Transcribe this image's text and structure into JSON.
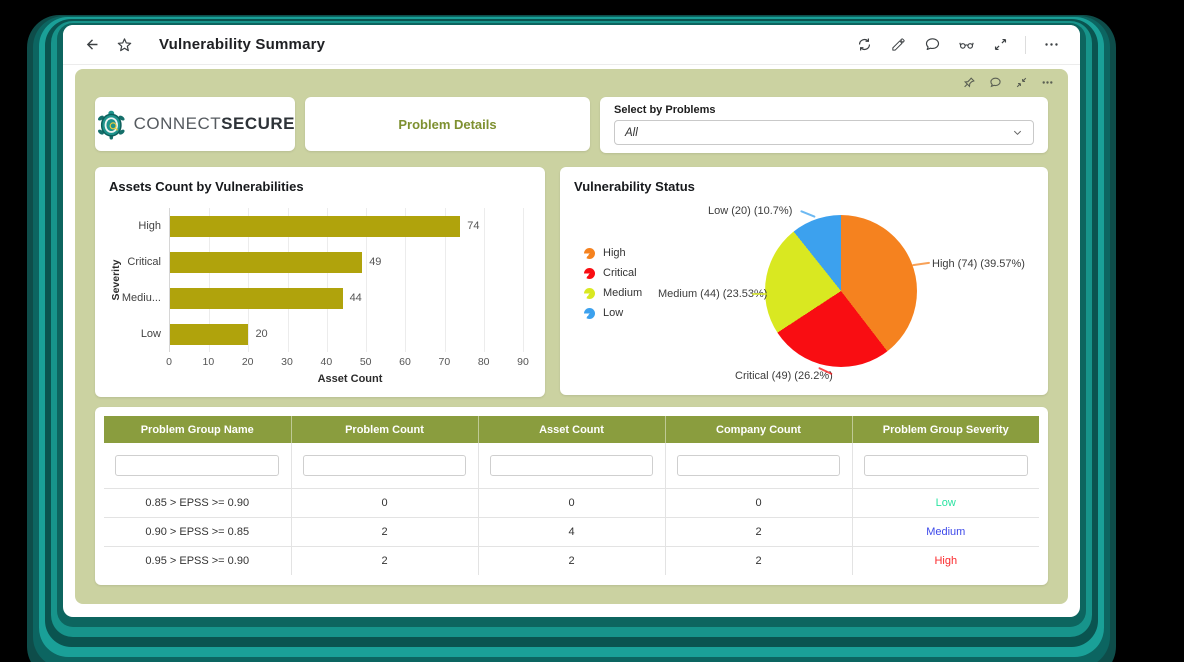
{
  "accent_colors": {
    "frame_teal": "#17948b",
    "panel_olive": "#cbd2a1",
    "table_header": "#8a9d3e",
    "brand_green": "#7e9030"
  },
  "toolbar": {
    "title": "Vulnerability Summary",
    "icons": [
      "back-arrow",
      "favorite-star",
      "refresh",
      "edit-pencil",
      "comment-bubble",
      "preview-glasses",
      "fullscreen-expand",
      "more-ellipsis"
    ]
  },
  "panel_corner_icons": [
    "pin",
    "comment-bubble",
    "collapse",
    "more-ellipsis"
  ],
  "header_cards": {
    "logo": {
      "brand_first": "CONNECT",
      "brand_second": "SECURE",
      "icon": "turtle-logo"
    },
    "details_label": "Problem Details",
    "select": {
      "label": "Select by Problems",
      "value": "All"
    }
  },
  "chart_data": [
    {
      "type": "bar",
      "orientation": "horizontal",
      "title": "Assets Count by Vulnerabilities",
      "categories": [
        "High",
        "Critical",
        "Mediu...",
        "Low"
      ],
      "values": [
        74,
        49,
        44,
        20
      ],
      "xlabel": "Asset Count",
      "ylabel": "Severity",
      "xlim": [
        0,
        90
      ],
      "xticks": [
        0,
        10,
        20,
        30,
        40,
        50,
        60,
        70,
        80,
        90
      ],
      "grid": "vertical",
      "bar_color": "#b0a30c"
    },
    {
      "type": "pie",
      "title": "Vulnerability Status",
      "start_angle": "top",
      "direction": "clockwise",
      "legend_position": "left",
      "slices": [
        {
          "label": "High",
          "value": 74,
          "pct": 39.57,
          "color": "#f5821f",
          "callout": "High (74) (39.57%)"
        },
        {
          "label": "Critical",
          "value": 49,
          "pct": 26.2,
          "color": "#f90d12",
          "callout": "Critical (49) (26.2%)"
        },
        {
          "label": "Medium",
          "value": 44,
          "pct": 23.53,
          "color": "#d9e821",
          "callout": "Medium (44) (23.53%)"
        },
        {
          "label": "Low",
          "value": 20,
          "pct": 10.7,
          "color": "#3ca1ee",
          "callout": "Low (20) (10.7%)"
        }
      ]
    }
  ],
  "table": {
    "headers": [
      "Problem Group Name",
      "Problem Count",
      "Asset Count",
      "Company Count",
      "Problem Group Severity"
    ],
    "filter_placeholders": [
      "",
      "",
      "",
      "",
      ""
    ],
    "rows": [
      {
        "name": "0.85 > EPSS >= 0.90",
        "problem_count": "0",
        "asset_count": "0",
        "company_count": "0",
        "severity": "Low",
        "severity_color": "#2be3a2"
      },
      {
        "name": "0.90 > EPSS >= 0.85",
        "problem_count": "2",
        "asset_count": "4",
        "company_count": "2",
        "severity": "Medium",
        "severity_color": "#3d49ea"
      },
      {
        "name": "0.95 > EPSS >= 0.90",
        "problem_count": "2",
        "asset_count": "2",
        "company_count": "2",
        "severity": "High",
        "severity_color": "#fb2a2d"
      }
    ]
  }
}
